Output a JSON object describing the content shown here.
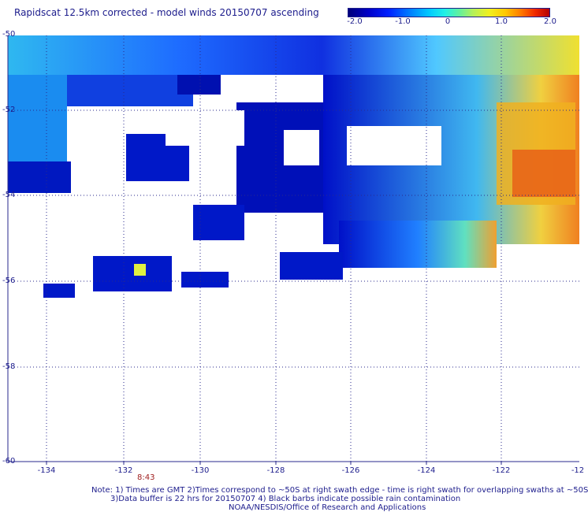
{
  "title": "Rapidscat 12.5km corrected - model winds 20150707 ascending",
  "colorbar": {
    "ticks": [
      "-2.0",
      "-1.0",
      "0",
      "1.0",
      "2.0"
    ],
    "colors": [
      "#00007a",
      "#0000c8",
      "#0020ff",
      "#0078ff",
      "#00c8ff",
      "#20f0e6",
      "#60f0a0",
      "#b4f05a",
      "#f0f020",
      "#ffc800",
      "#ff7800",
      "#f02800",
      "#b40000"
    ]
  },
  "lat_labels": [
    "-50",
    "-52",
    "-54",
    "-56",
    "-58",
    "-60"
  ],
  "lon_labels": [
    "-134",
    "-132",
    "-130",
    "-128",
    "-126",
    "-124",
    "-122",
    "-12"
  ],
  "time_label": "8:43",
  "notes": [
    "Note: 1) Times are GMT 2)Times correspond to ~50S at right swath edge - time is right swath for overlapping swaths at ~50S",
    "3)Data buffer is 22 hrs for 20150707 4) Black barbs indicate possible rain contamination",
    "NOAA/NESDIS/Office of Research and Applications"
  ]
}
